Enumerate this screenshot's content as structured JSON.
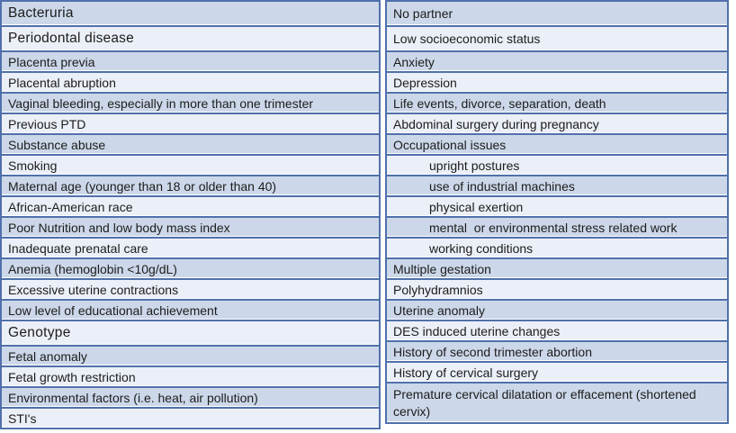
{
  "page": {
    "background": "#ffffff"
  },
  "table": {
    "text_color": "#1c1c1c",
    "row_fill_blue": "#ccd8e9",
    "row_fill_light": "#ebeff7",
    "border_color": "#5070ab",
    "left_column": {
      "rows": [
        {
          "label": "Bacteruria",
          "style": "tall-large"
        },
        {
          "label": "Periodontal disease",
          "style": "tall-large"
        },
        {
          "label": "Placenta previa",
          "style": ""
        },
        {
          "label": "Placental abruption",
          "style": ""
        },
        {
          "label": "Vaginal bleeding, especially in more than one trimester",
          "style": ""
        },
        {
          "label": "Previous PTD",
          "style": ""
        },
        {
          "label": "Substance abuse",
          "style": ""
        },
        {
          "label": "Smoking",
          "style": ""
        },
        {
          "label": "Maternal age (younger than 18 or older than 40)",
          "style": ""
        },
        {
          "label": "African-American race",
          "style": ""
        },
        {
          "label": "Poor Nutrition and low body mass index",
          "style": ""
        },
        {
          "label": "Inadequate prenatal care",
          "style": ""
        },
        {
          "label": "Anemia (hemoglobin <10g/dL)",
          "style": ""
        },
        {
          "label": "Excessive uterine contractions",
          "style": ""
        },
        {
          "label": "Low level of educational achievement",
          "style": ""
        },
        {
          "label": "Genotype",
          "style": "large"
        },
        {
          "label": "Fetal anomaly",
          "style": ""
        },
        {
          "label": "Fetal growth restriction",
          "style": ""
        },
        {
          "label": "Environmental factors (i.e. heat, air pollution)",
          "style": ""
        },
        {
          "label": "STI's",
          "style": ""
        }
      ]
    },
    "right_column": {
      "rows": [
        {
          "label": "No partner",
          "style": "tall"
        },
        {
          "label": "Low socioeconomic status",
          "style": "tall"
        },
        {
          "label": "Anxiety",
          "style": ""
        },
        {
          "label": "Depression",
          "style": ""
        },
        {
          "label": "Life events, divorce, separation, death",
          "style": ""
        },
        {
          "label": "Abdominal surgery during pregnancy",
          "style": ""
        },
        {
          "label": "Occupational issues",
          "style": ""
        },
        {
          "label": "upright postures",
          "style": "indent"
        },
        {
          "label": "use of industrial machines",
          "style": "indent"
        },
        {
          "label": "physical exertion",
          "style": "indent"
        },
        {
          "label": "mental  or environmental stress related work",
          "style": "indent"
        },
        {
          "label": "working conditions",
          "style": "indent"
        },
        {
          "label": "Multiple gestation",
          "style": ""
        },
        {
          "label": "Polyhydramnios",
          "style": ""
        },
        {
          "label": "Uterine anomaly",
          "style": ""
        },
        {
          "label": "DES induced uterine changes",
          "style": ""
        },
        {
          "label": "History of second trimester abortion",
          "style": ""
        },
        {
          "label": "History of cervical surgery",
          "style": ""
        },
        {
          "label": "Premature cervical dilatation or effacement (shortened cervix)",
          "style": "twoline"
        }
      ]
    }
  }
}
